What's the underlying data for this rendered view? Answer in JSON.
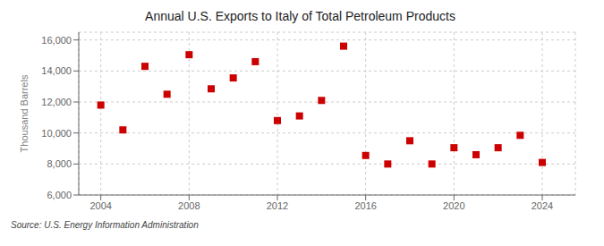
{
  "chart_data": {
    "type": "scatter",
    "title": "Annual U.S. Exports to Italy of Total Petroleum Products",
    "ylabel": "Thousand Barrels",
    "annotations": [
      "Source: U.S. Energy Information Administration"
    ],
    "x": [
      2004,
      2005,
      2006,
      2007,
      2008,
      2009,
      2010,
      2011,
      2012,
      2013,
      2014,
      2015,
      2016,
      2017,
      2018,
      2019,
      2020,
      2021,
      2022,
      2023,
      2024
    ],
    "values": [
      11800,
      10200,
      14300,
      12500,
      15050,
      12850,
      13550,
      14600,
      10800,
      11100,
      12100,
      15600,
      8550,
      8000,
      9500,
      8000,
      9050,
      8600,
      9050,
      9850,
      8100
    ],
    "color": "#cc0000",
    "marker": "square",
    "xlim": [
      2003,
      2025.5
    ],
    "ylim": [
      6000,
      16500
    ],
    "xticks": [
      2004,
      2008,
      2012,
      2016,
      2020,
      2024
    ],
    "yticks": [
      {
        "value": 6000,
        "label": "6,000"
      },
      {
        "value": 8000,
        "label": "8,000"
      },
      {
        "value": 10000,
        "label": "10,000"
      },
      {
        "value": 12000,
        "label": "12,000"
      },
      {
        "value": 14000,
        "label": "14,000"
      },
      {
        "value": 16000,
        "label": "16,000"
      }
    ],
    "grid": true
  }
}
